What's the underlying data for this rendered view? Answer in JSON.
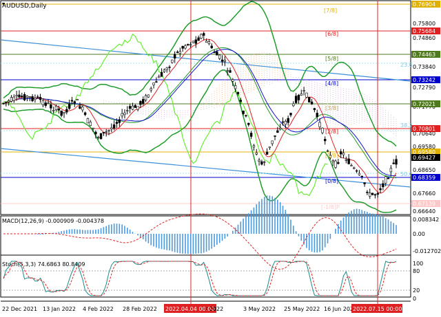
{
  "symbol_label": "AUDUSD,Daily",
  "macd_label": "MACD(12,26,9) -0.000909 -0.004378",
  "stoch_label": "Stoch(5,3,3) 74.6863 80.8409",
  "dates": [
    "22 Dec 2021",
    "13 Jan 2022",
    "4 Feb 2022",
    "28 Feb 2022",
    "2022.04.04 00:00",
    "r 2022",
    "3 May 2022",
    "25 May 2022",
    "16 Jun 2022",
    "2022.07.15 00:00"
  ],
  "price_axis": [
    "0.75800",
    "0.74860",
    "0.73840",
    "0.72790",
    "0.71770",
    "0.70640",
    "0.69580",
    "0.68650",
    "0.67660",
    "0.66640"
  ],
  "price_tags": [
    {
      "label": "0.76904",
      "color": "#e0b000"
    },
    {
      "label": "0.75684",
      "color": "#e02020"
    },
    {
      "label": "0.74463",
      "color": "#4f7a1c"
    },
    {
      "label": "0.73242",
      "color": "#0000cc"
    },
    {
      "label": "0.72021",
      "color": "#4f7a1c"
    },
    {
      "label": "0.70801",
      "color": "#e02020"
    },
    {
      "label": "0.69580",
      "color": "#e0b000"
    },
    {
      "label": "0.69427",
      "color": "#000000"
    },
    {
      "label": "0.68359",
      "color": "#0000cc"
    },
    {
      "label": "0.67139",
      "color": "#ffc8c8"
    }
  ],
  "murrey_labels": [
    "[7/8]",
    "[6/8]",
    "[5/8]",
    "[4/8]",
    "[3/8]",
    "[2/8]",
    "[1/8]",
    "[0/8]",
    "[-1/8]P"
  ],
  "fib_labels": [
    "23.6",
    "38.2",
    "50.0"
  ],
  "macd_axis": [
    "0.008342",
    "0.00",
    "-0.012702"
  ],
  "stoch_axis": [
    "100",
    "80",
    "20",
    "0"
  ],
  "colors": {
    "bull": "#000000",
    "bear": "#000000",
    "bb": "#1f9c2a",
    "ma_red": "#e02020",
    "ma_blue": "#1010d0",
    "lime": "#66ee33"
  }
}
